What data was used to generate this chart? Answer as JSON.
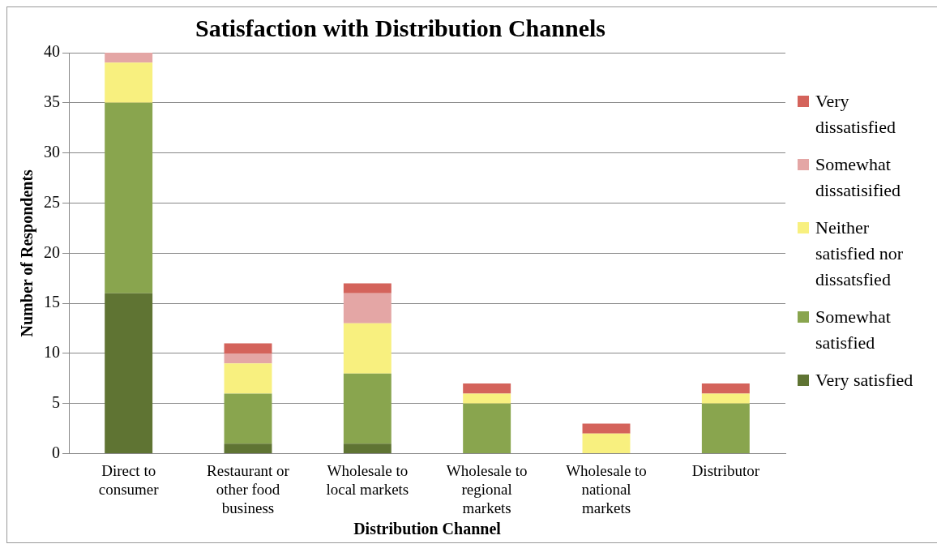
{
  "chart_data": {
    "type": "bar",
    "title": "Satisfaction with Distribution Channels",
    "xlabel": "Distribution Channel",
    "ylabel": "Number of Respondents",
    "categories": [
      "Direct to consumer",
      "Restaurant or other food business",
      "Wholesale to local markets",
      "Wholesale to regional markets",
      "Wholesale to national markets",
      "Distributor"
    ],
    "series": [
      {
        "name": "Very satisfied",
        "color": "#5f7433",
        "values": [
          16,
          1,
          1,
          0,
          0,
          0
        ]
      },
      {
        "name": "Somewhat satisfied",
        "color": "#89a54e",
        "values": [
          19,
          5,
          7,
          5,
          0,
          5
        ]
      },
      {
        "name": "Neither satisfied nor dissatsfied",
        "color": "#f8f07f",
        "values": [
          4,
          3,
          5,
          1,
          2,
          1
        ]
      },
      {
        "name": "Somewhat dissatisified",
        "color": "#e4a6a5",
        "values": [
          1,
          1,
          3,
          0,
          0,
          0
        ]
      },
      {
        "name": "Very dissatisfied",
        "color": "#d4635b",
        "values": [
          0,
          1,
          1,
          1,
          1,
          1
        ]
      }
    ],
    "stacked": true,
    "ylim": [
      0,
      40
    ],
    "yticks": [
      0,
      5,
      10,
      15,
      20,
      25,
      30,
      35,
      40
    ],
    "grid": "y",
    "legend": "right"
  }
}
